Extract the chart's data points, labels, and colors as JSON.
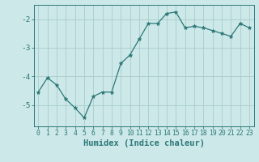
{
  "x": [
    0,
    1,
    2,
    3,
    4,
    5,
    6,
    7,
    8,
    9,
    10,
    11,
    12,
    13,
    14,
    15,
    16,
    17,
    18,
    19,
    20,
    21,
    22,
    23
  ],
  "y": [
    -4.55,
    -4.05,
    -4.3,
    -4.8,
    -5.1,
    -5.45,
    -4.7,
    -4.55,
    -4.55,
    -3.55,
    -3.25,
    -2.7,
    -2.15,
    -2.15,
    -1.8,
    -1.75,
    -2.3,
    -2.25,
    -2.3,
    -2.4,
    -2.5,
    -2.6,
    -2.15,
    -2.3
  ],
  "line_color": "#2d7878",
  "marker": "*",
  "marker_size": 3.5,
  "bg_color": "#cce8e8",
  "grid_color": "#aacccc",
  "axis_color": "#2d7878",
  "tick_color": "#2d7878",
  "xlabel": "Humidex (Indice chaleur)",
  "xlabel_fontsize": 7.5,
  "ytick_labels": [
    "-5",
    "-4",
    "-3",
    "-2"
  ],
  "yticks": [
    -5,
    -4,
    -3,
    -2
  ],
  "ylim": [
    -5.75,
    -1.5
  ],
  "xlim": [
    -0.5,
    23.5
  ],
  "font_color": "#2d7878",
  "tick_fontsize": 5.8,
  "linewidth": 0.9
}
